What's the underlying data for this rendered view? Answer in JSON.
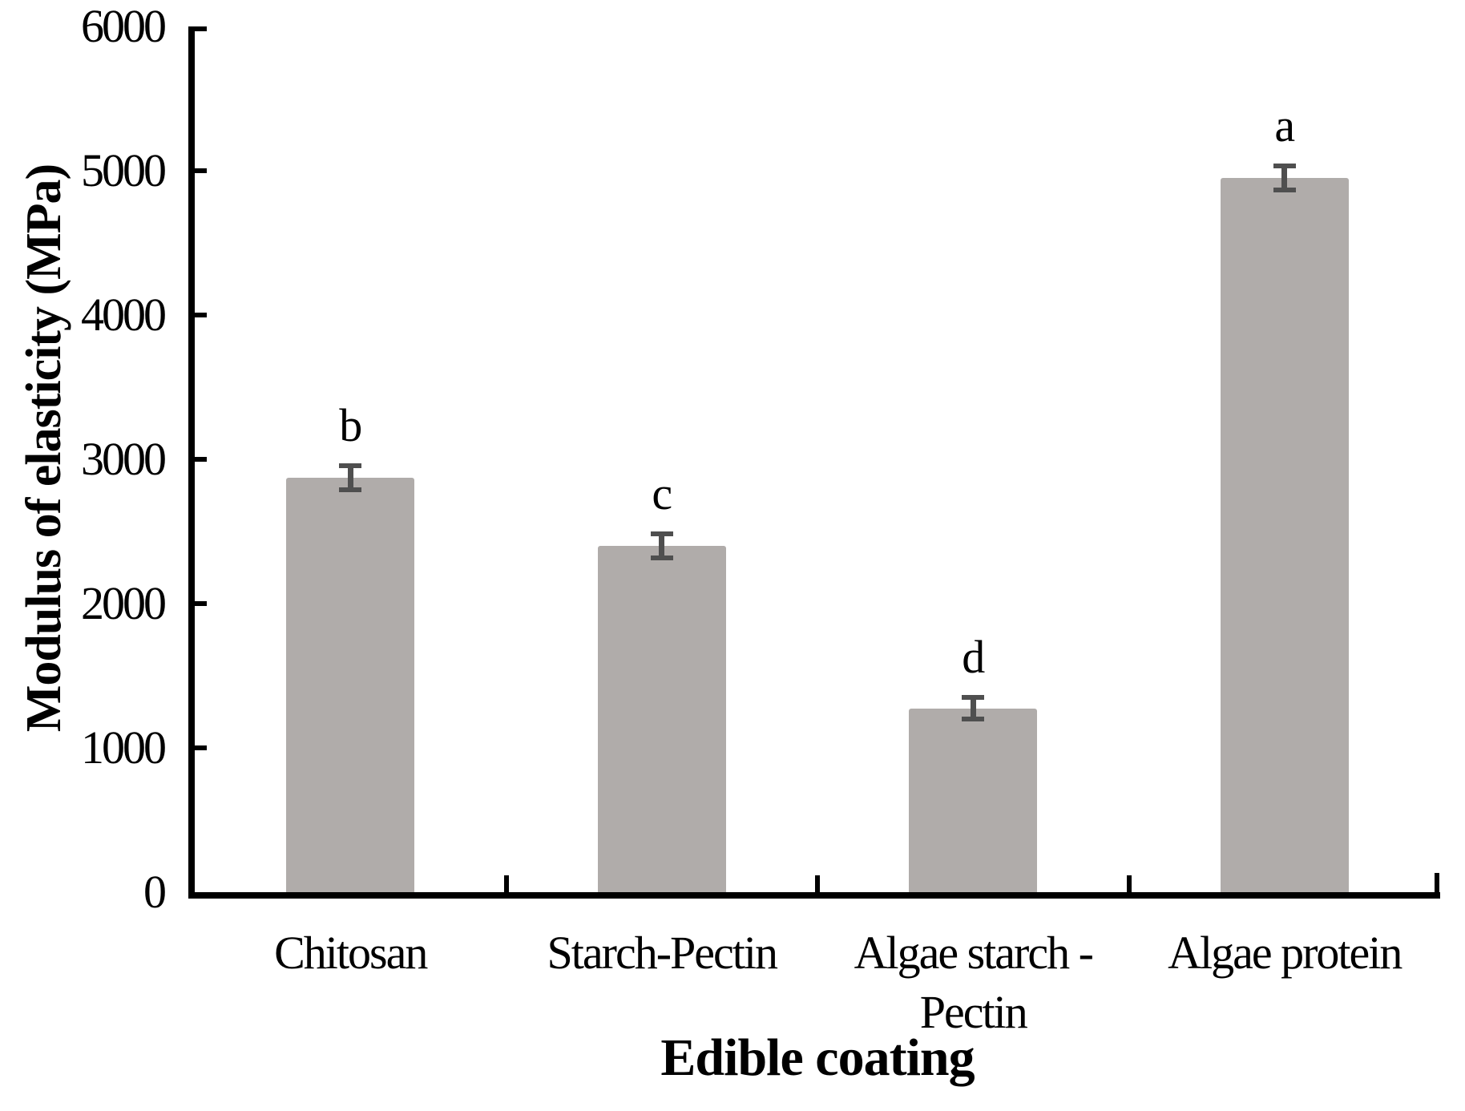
{
  "figure": {
    "background": "#ffffff",
    "type_label": "bar-chart-figure"
  },
  "chart_data": {
    "type": "bar",
    "title": "",
    "xlabel": "Edible coating",
    "ylabel": "Modulus of elasticity (MPa)",
    "ylim": [
      0,
      6000
    ],
    "ytick_step": 1000,
    "y_ticks": [
      6000,
      5000,
      4000,
      3000,
      2000,
      1000,
      0
    ],
    "y_tick_labels": [
      "6000",
      "5000",
      "4000",
      "3000",
      "2000",
      "1000",
      "0"
    ],
    "categories": [
      "Chitosan",
      "Starch-Pectin",
      "Algae starch - Pectin",
      "Algae protein"
    ],
    "categories_wrapped": [
      [
        "Chitosan"
      ],
      [
        "Starch-Pectin"
      ],
      [
        "Algae starch -",
        "Pectin"
      ],
      [
        "Algae protein"
      ]
    ],
    "values": [
      2875,
      2400,
      1275,
      4950
    ],
    "errors": [
      100,
      100,
      90,
      100
    ],
    "significance_letters": [
      "b",
      "c",
      "d",
      "a"
    ],
    "bar_color": "#b0acaa",
    "error_bar_color": "#4f4f4f",
    "axis_color": "#000000",
    "grid": "off",
    "legend": "none"
  }
}
